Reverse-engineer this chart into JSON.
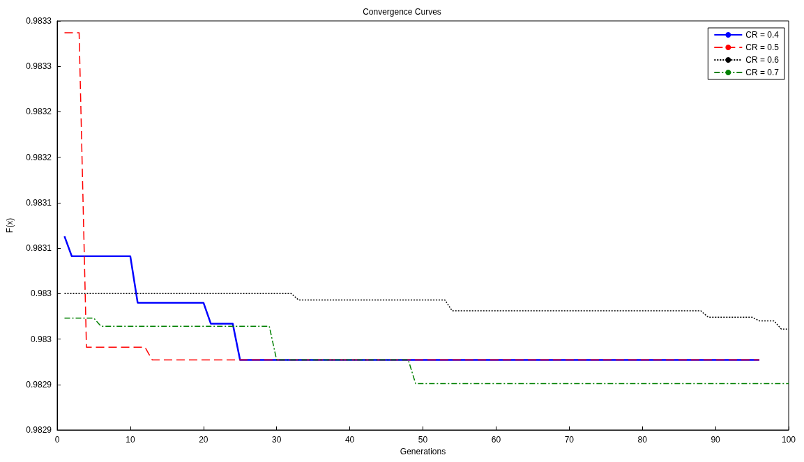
{
  "chart_data": {
    "type": "line",
    "title": "Convergence Curves",
    "xlabel": "Generations",
    "ylabel": "F(x)",
    "xlim": [
      0,
      100
    ],
    "xticks": [
      0,
      10,
      20,
      30,
      40,
      50,
      60,
      70,
      80,
      90,
      100
    ],
    "ylim": [
      0.98288,
      0.98333
    ],
    "yticks": [
      {
        "value": 0.98288,
        "label": "0.9829"
      },
      {
        "value": 0.98293,
        "label": "0.9829"
      },
      {
        "value": 0.98298,
        "label": "0.983"
      },
      {
        "value": 0.98303,
        "label": "0.983"
      },
      {
        "value": 0.98308,
        "label": "0.9831"
      },
      {
        "value": 0.98313,
        "label": "0.9831"
      },
      {
        "value": 0.98318,
        "label": "0.9832"
      },
      {
        "value": 0.98323,
        "label": "0.9832"
      },
      {
        "value": 0.98328,
        "label": "0.9833"
      },
      {
        "value": 0.98333,
        "label": "0.9833"
      }
    ],
    "grid": false,
    "legend": "top right",
    "marker": "none",
    "series": [
      {
        "name": "CR = 0.4",
        "color": "#0000ff",
        "line_style": "solid",
        "x": [
          1,
          2,
          10,
          11,
          20,
          21,
          24,
          25,
          96
        ],
        "values": [
          0.983093,
          0.983071,
          0.983071,
          0.98302,
          0.98302,
          0.982997,
          0.982997,
          0.982957,
          0.982957
        ]
      },
      {
        "name": "CR = 0.5",
        "color": "#ff0000",
        "line_style": "dashed",
        "x": [
          1,
          3,
          4,
          12,
          13,
          96
        ],
        "values": [
          0.983317,
          0.983317,
          0.982971,
          0.982971,
          0.982957,
          0.982957
        ]
      },
      {
        "name": "CR = 0.6",
        "color": "#000000",
        "line_style": "dotted",
        "x": [
          1,
          32,
          33,
          53,
          54,
          88,
          89,
          95,
          96,
          98,
          99,
          100
        ],
        "values": [
          0.98303,
          0.98303,
          0.983023,
          0.983023,
          0.983011,
          0.983011,
          0.983004,
          0.983004,
          0.983,
          0.983,
          0.982991,
          0.982991
        ]
      },
      {
        "name": "CR = 0.7",
        "color": "#008000",
        "line_style": "dashed",
        "x": [
          1,
          5,
          6,
          29,
          30,
          48,
          49,
          100
        ],
        "values": [
          0.983003,
          0.983003,
          0.982994,
          0.982994,
          0.982957,
          0.982957,
          0.982931,
          0.982931
        ]
      }
    ]
  }
}
